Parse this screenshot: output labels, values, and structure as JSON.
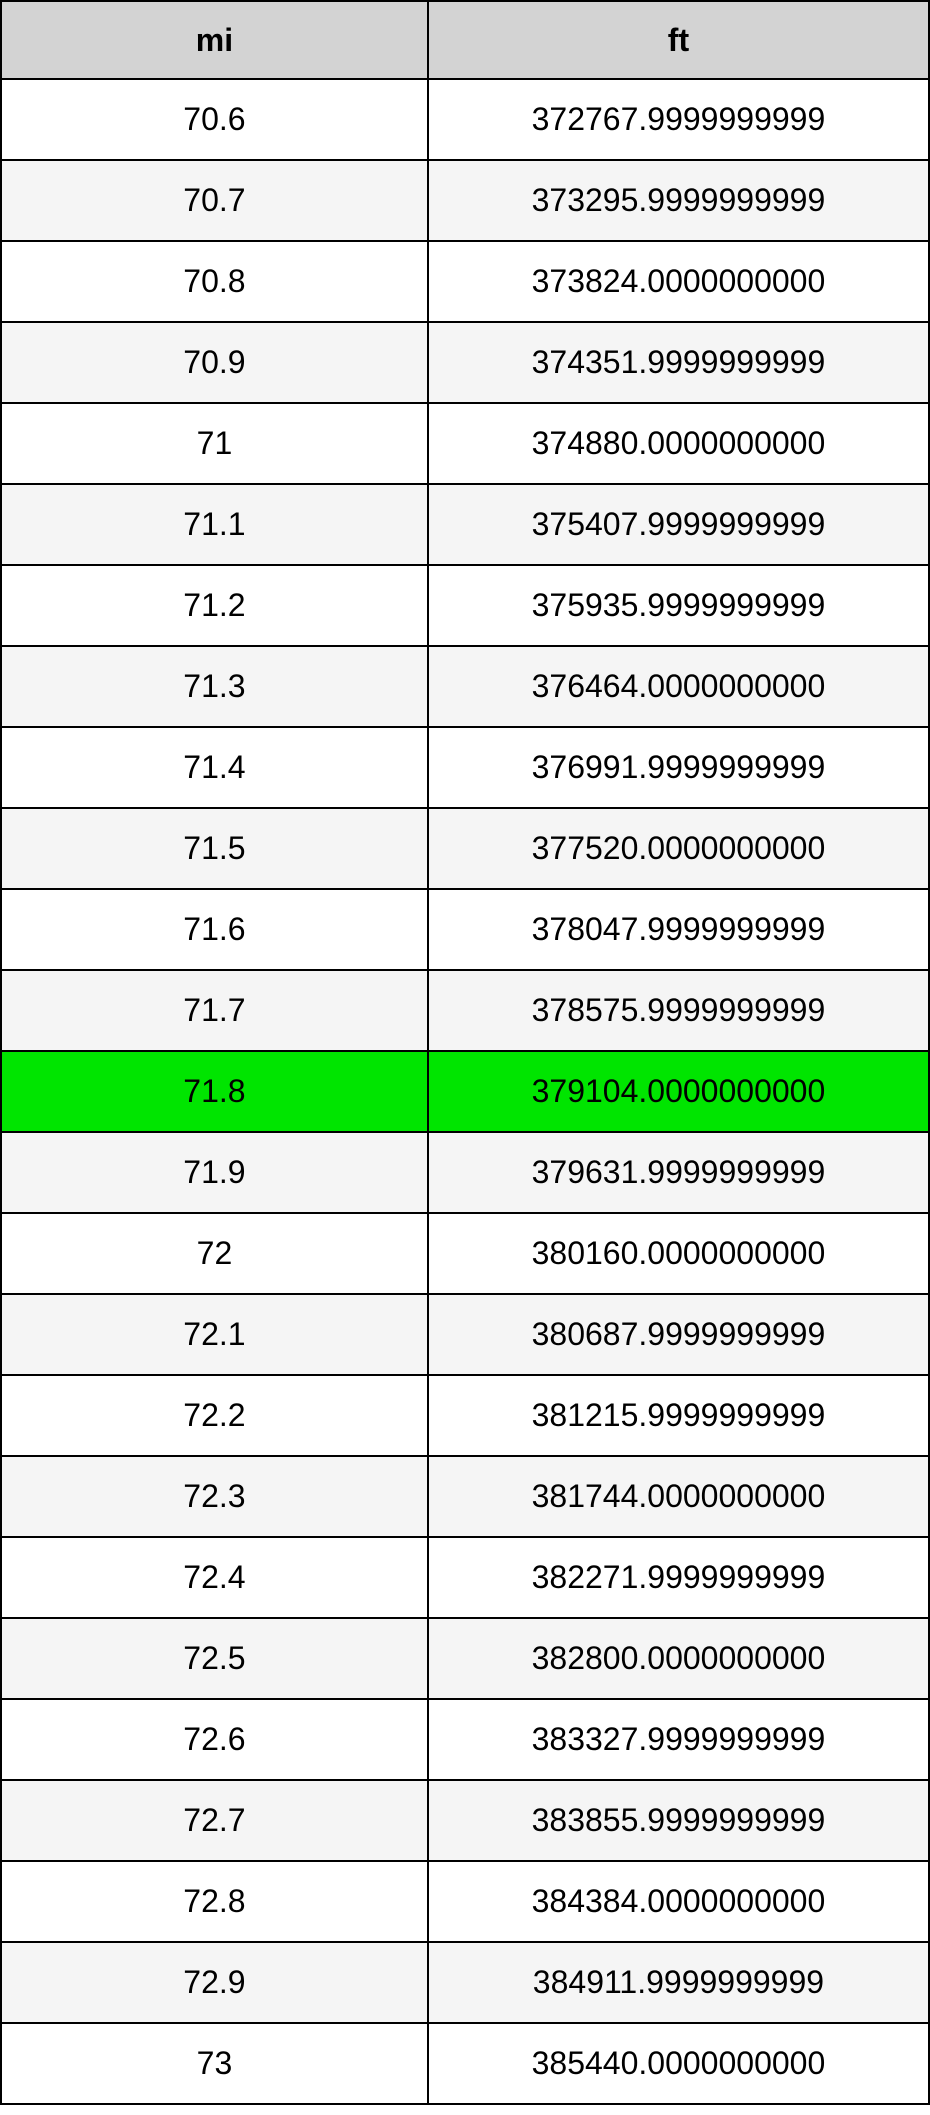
{
  "conversion_table": {
    "type": "table",
    "columns": [
      "mi",
      "ft"
    ],
    "header_background": "#d3d3d3",
    "border_color": "#000000",
    "odd_row_background": "#ffffff",
    "even_row_background": "#f5f5f5",
    "highlight_background": "#00e500",
    "font_size": 32,
    "column_widths": [
      "46%",
      "54%"
    ],
    "highlighted_row_index": 12,
    "rows": [
      [
        "70.6",
        "372767.9999999999"
      ],
      [
        "70.7",
        "373295.9999999999"
      ],
      [
        "70.8",
        "373824.0000000000"
      ],
      [
        "70.9",
        "374351.9999999999"
      ],
      [
        "71",
        "374880.0000000000"
      ],
      [
        "71.1",
        "375407.9999999999"
      ],
      [
        "71.2",
        "375935.9999999999"
      ],
      [
        "71.3",
        "376464.0000000000"
      ],
      [
        "71.4",
        "376991.9999999999"
      ],
      [
        "71.5",
        "377520.0000000000"
      ],
      [
        "71.6",
        "378047.9999999999"
      ],
      [
        "71.7",
        "378575.9999999999"
      ],
      [
        "71.8",
        "379104.0000000000"
      ],
      [
        "71.9",
        "379631.9999999999"
      ],
      [
        "72",
        "380160.0000000000"
      ],
      [
        "72.1",
        "380687.9999999999"
      ],
      [
        "72.2",
        "381215.9999999999"
      ],
      [
        "72.3",
        "381744.0000000000"
      ],
      [
        "72.4",
        "382271.9999999999"
      ],
      [
        "72.5",
        "382800.0000000000"
      ],
      [
        "72.6",
        "383327.9999999999"
      ],
      [
        "72.7",
        "383855.9999999999"
      ],
      [
        "72.8",
        "384384.0000000000"
      ],
      [
        "72.9",
        "384911.9999999999"
      ],
      [
        "73",
        "385440.0000000000"
      ]
    ]
  }
}
